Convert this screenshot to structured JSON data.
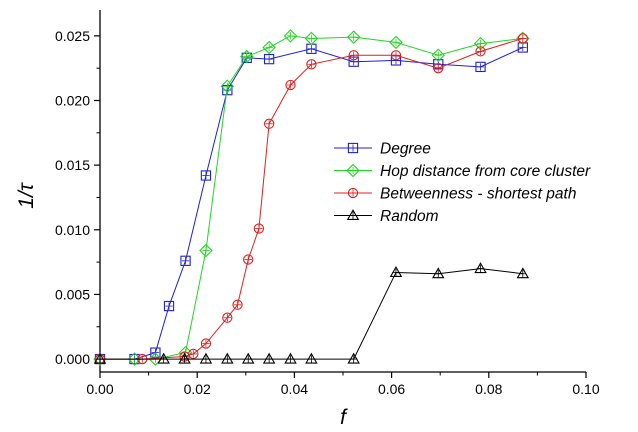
{
  "chart_data": {
    "type": "line",
    "xlabel": "f",
    "ylabel": "1/τ",
    "xlim": [
      0.0,
      0.1
    ],
    "ylim": [
      -0.001,
      0.027
    ],
    "x_ticks": [
      0.0,
      0.02,
      0.04,
      0.06,
      0.08,
      0.1
    ],
    "x_tick_labels": [
      "0.00",
      "0.02",
      "0.04",
      "0.06",
      "0.08",
      "0.10"
    ],
    "y_ticks": [
      0.0,
      0.005,
      0.01,
      0.015,
      0.02,
      0.025
    ],
    "y_tick_labels": [
      "0.000",
      "0.005",
      "0.010",
      "0.015",
      "0.020",
      "0.025"
    ],
    "grid": false,
    "legend_position": "center-right",
    "series": [
      {
        "name": "Degree",
        "color": "#1f1fd6",
        "marker": "square",
        "x": [
          0.0,
          0.0071,
          0.0114,
          0.0142,
          0.0176,
          0.0218,
          0.0262,
          0.0302,
          0.0348,
          0.0435,
          0.0522,
          0.0609,
          0.0696,
          0.0783,
          0.087
        ],
        "y": [
          0.0,
          0.0,
          0.0005,
          0.0041,
          0.0076,
          0.0142,
          0.0208,
          0.0233,
          0.0232,
          0.024,
          0.023,
          0.0231,
          0.0228,
          0.0226,
          0.0241
        ]
      },
      {
        "name": "Hop distance from core cluster",
        "color": "#1fd61f",
        "marker": "diamond",
        "x": [
          0.0,
          0.0071,
          0.0114,
          0.0176,
          0.0218,
          0.0262,
          0.0302,
          0.0348,
          0.0392,
          0.0435,
          0.0522,
          0.0609,
          0.0696,
          0.0783,
          0.087
        ],
        "y": [
          0.0,
          0.0,
          0.0,
          0.0005,
          0.0084,
          0.0211,
          0.0234,
          0.0241,
          0.025,
          0.0248,
          0.0249,
          0.0245,
          0.0235,
          0.0244,
          0.0248
        ]
      },
      {
        "name": "Betweenness - shortest path",
        "color": "#e01f1f",
        "marker": "circle",
        "x": [
          0.0,
          0.0087,
          0.0174,
          0.0192,
          0.0218,
          0.0262,
          0.0283,
          0.0305,
          0.0327,
          0.0348,
          0.0392,
          0.0435,
          0.0522,
          0.0609,
          0.0696,
          0.0783,
          0.087
        ],
        "y": [
          0.0,
          0.0,
          0.0002,
          0.0004,
          0.0012,
          0.0032,
          0.0042,
          0.0077,
          0.0101,
          0.0182,
          0.0212,
          0.0228,
          0.0235,
          0.0235,
          0.0225,
          0.0238,
          0.0248
        ]
      },
      {
        "name": "Random",
        "color": "#000000",
        "marker": "triangle",
        "x": [
          0.0,
          0.0131,
          0.0174,
          0.0218,
          0.0262,
          0.0305,
          0.0348,
          0.0392,
          0.0435,
          0.0522,
          0.0609,
          0.0696,
          0.0783,
          0.087
        ],
        "y": [
          0.0,
          0.0,
          0.0,
          0.0,
          0.0,
          0.0,
          0.0,
          0.0,
          0.0,
          0.0,
          0.0067,
          0.0066,
          0.007,
          0.0066
        ]
      }
    ]
  }
}
